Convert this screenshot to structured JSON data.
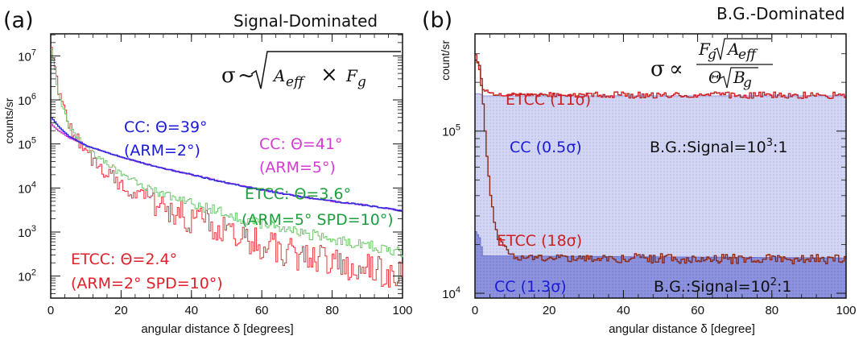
{
  "chart_data": [
    {
      "type": "line",
      "panel_label": "(a)",
      "header": "Signal-Dominated",
      "ylabel": "counts/sr",
      "xlabel": "angular distance  δ [degrees]",
      "xlim": [
        0,
        100
      ],
      "ylim_log10": [
        1.5,
        7.5
      ],
      "x_ticks": [
        "0",
        "20",
        "40",
        "60",
        "80",
        "100"
      ],
      "y_ticks": [
        {
          "base": "10",
          "exp": "2"
        },
        {
          "base": "10",
          "exp": "3"
        },
        {
          "base": "10",
          "exp": "4"
        },
        {
          "base": "10",
          "exp": "5"
        },
        {
          "base": "10",
          "exp": "6"
        },
        {
          "base": "10",
          "exp": "7"
        }
      ],
      "formula": {
        "sigma": "σ",
        "rel": "~",
        "a": "A",
        "a_sub": "eff",
        "times": "×",
        "f": "F",
        "f_sub": "g"
      },
      "series": [
        {
          "color": "#e8333a",
          "x": [
            0,
            2,
            5,
            10,
            20,
            30,
            40,
            50,
            60,
            70,
            80,
            90,
            100
          ],
          "y": [
            20000000,
            1500000,
            250000,
            60000,
            12000,
            4000,
            2000,
            1000,
            500,
            300,
            200,
            150,
            100
          ]
        },
        {
          "color": "#6cc96a",
          "x": [
            0,
            2,
            5,
            10,
            20,
            30,
            40,
            50,
            60,
            70,
            80,
            90,
            100
          ],
          "y": [
            15000000,
            1300000,
            250000,
            80000,
            20000,
            8000,
            4500,
            2500,
            1500,
            1000,
            700,
            500,
            350
          ]
        },
        {
          "color": "#d43bd4",
          "x": [
            0,
            2,
            5,
            10,
            20,
            30,
            40,
            50,
            60,
            70,
            80,
            90,
            100
          ],
          "y": [
            280000,
            200000,
            140000,
            90000,
            50000,
            30000,
            20000,
            13000,
            9000,
            6500,
            5000,
            4000,
            3000
          ]
        },
        {
          "color": "#2a2ae0",
          "x": [
            0,
            2,
            5,
            10,
            20,
            30,
            40,
            50,
            60,
            70,
            80,
            90,
            100
          ],
          "y": [
            400000,
            250000,
            150000,
            90000,
            50000,
            30000,
            20000,
            13000,
            9000,
            6500,
            5000,
            4000,
            3000
          ]
        }
      ],
      "annotations": [
        {
          "line1": "CC: Θ=39°",
          "line2": "(ARM=2°)",
          "color": "#1a1ad6"
        },
        {
          "line1": "CC: Θ=41°",
          "line2": "(ARM=5°)",
          "color": "#d43bd4"
        },
        {
          "line1": "ETCC:  Θ=3.6°",
          "line2": "(ARM=5° SPD=10°)",
          "color": "#1e9e3e"
        },
        {
          "line1": "ETCC:  Θ=2.4°",
          "line2": "(ARM=2° SPD=10°)",
          "color": "#e0202a"
        }
      ]
    },
    {
      "type": "area",
      "panel_label": "(b)",
      "header": "B.G.-Dominated",
      "ylabel": "count/sr",
      "xlabel": "angular distance  δ [degree]",
      "xlim": [
        0,
        100
      ],
      "ylim_log10": [
        3.97,
        5.6
      ],
      "x_ticks": [
        "0",
        "20",
        "40",
        "60",
        "80",
        "100"
      ],
      "y_ticks": [
        {
          "base": "10",
          "exp": "4"
        },
        {
          "base": "10",
          "exp": "5"
        }
      ],
      "formula": {
        "sigma": "σ",
        "rel": "∝",
        "num_f": "F",
        "num_f_sub": "g",
        "num_a": "A",
        "num_a_sub": "eff",
        "den_t": "Θ",
        "den_b": "B",
        "den_b_sub": "g"
      },
      "series": [
        {
          "color": "#c8cdf0",
          "x": [
            0,
            1,
            2,
            100
          ],
          "y": [
            170000,
            170000,
            165000,
            165000
          ]
        },
        {
          "color": "#7e83d8",
          "x": [
            0,
            1,
            2,
            100
          ],
          "y": [
            24000,
            22000,
            17000,
            16500
          ]
        },
        {
          "color": "#cc1f1f",
          "x": [
            0,
            1,
            2,
            5,
            100
          ],
          "y": [
            300000,
            240000,
            180000,
            168000,
            166000
          ]
        },
        {
          "color": "#8b2a1a",
          "x": [
            0,
            1,
            2,
            3,
            4,
            5,
            6,
            8,
            10,
            12,
            100
          ],
          "y": [
            280000,
            250000,
            150000,
            70000,
            40000,
            28000,
            22000,
            19000,
            17000,
            16500,
            16200
          ]
        }
      ],
      "annotations": [
        {
          "text": "ETCC (11σ)",
          "color": "#cc1f1f"
        },
        {
          "text": "CC (0.5σ)",
          "color": "#1a1ad6"
        },
        {
          "text": "B.G.:Signal=10",
          "sup": "3",
          "tail": ":1",
          "color": "#111111"
        },
        {
          "text": "ETCC (18σ)",
          "color": "#cc1f1f"
        },
        {
          "text": "CC (1.3σ)",
          "color": "#1a1ad6"
        },
        {
          "text": "B.G.:Signal=10",
          "sup": "2",
          "tail": ":1",
          "color": "#111111"
        }
      ]
    }
  ]
}
